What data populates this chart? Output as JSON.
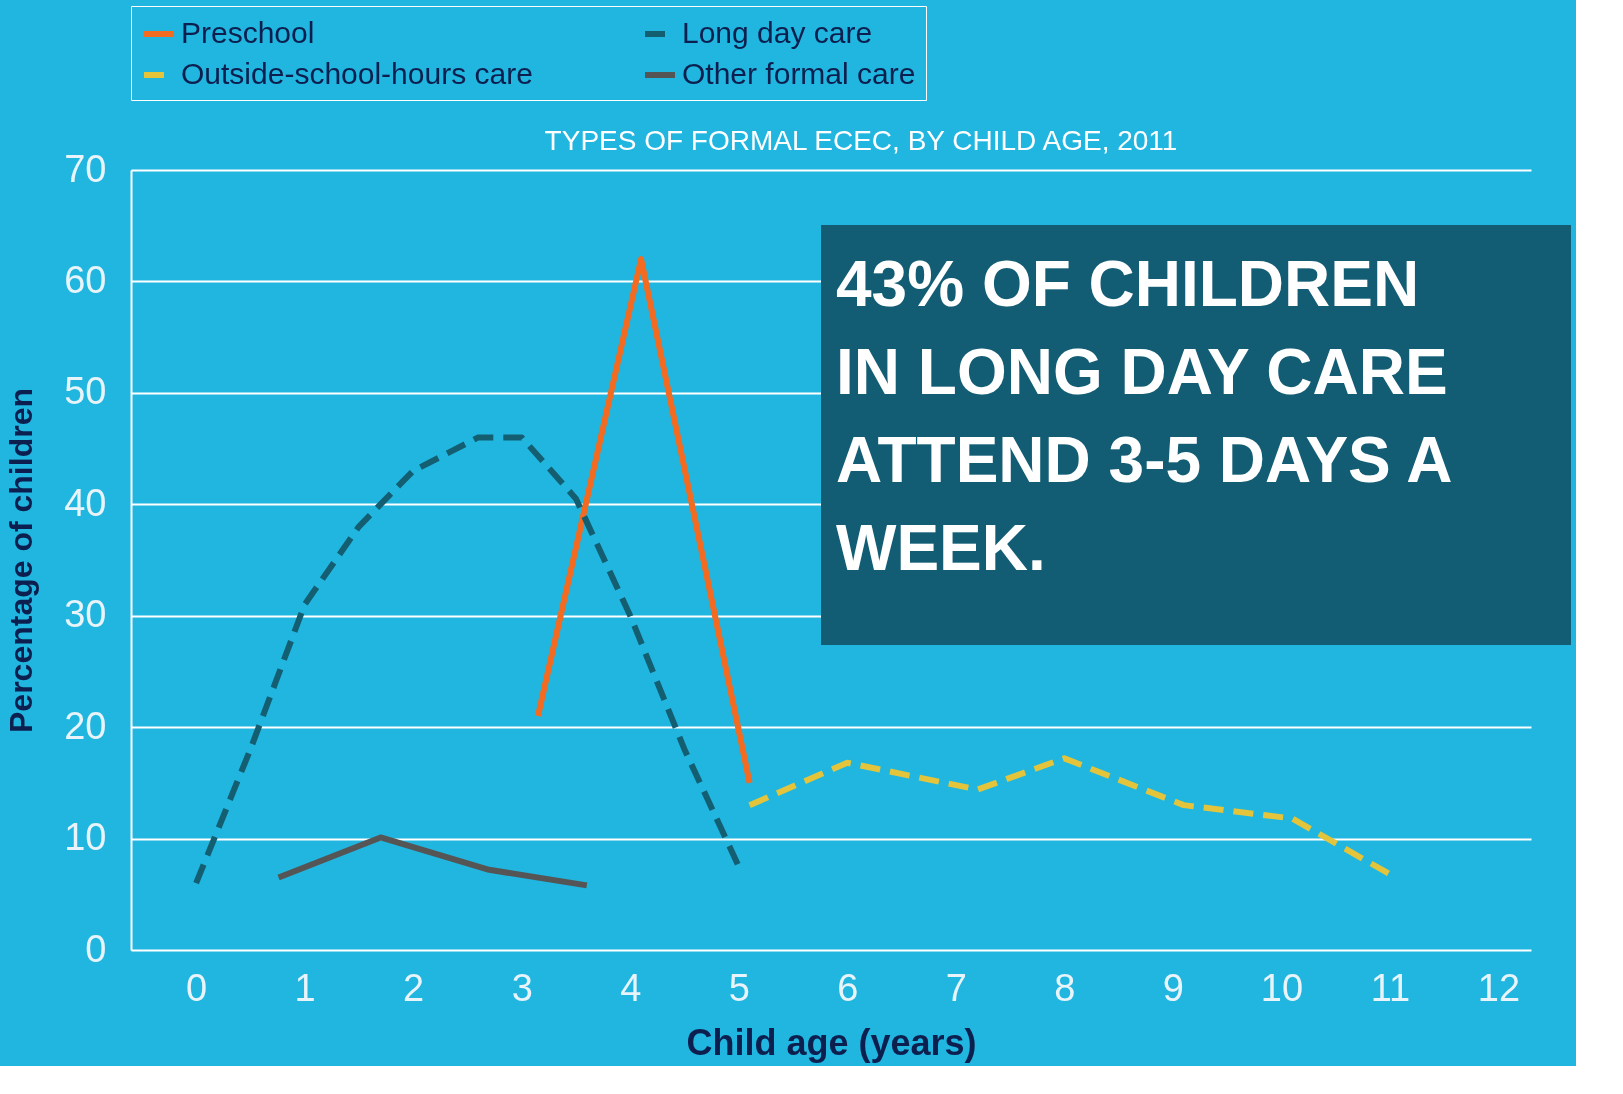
{
  "chart_data": {
    "type": "line",
    "title": "TYPES OF FORMAL ECEC, BY CHILD AGE, 2011",
    "xlabel": "Child age (years)",
    "ylabel": "Percentage of children",
    "xlim": [
      -0.6,
      12.3
    ],
    "xticks": [
      0,
      1,
      2,
      3,
      4,
      5,
      6,
      7,
      8,
      9,
      10,
      11,
      12
    ],
    "ylim": [
      0,
      70
    ],
    "yticks": [
      0,
      10,
      20,
      30,
      40,
      50,
      60,
      70
    ],
    "grid": "y",
    "legend": "top",
    "marker": "none",
    "series": [
      {
        "name": "Preschool",
        "color": "#f26b21",
        "line_style": "solid",
        "x": [
          3.15,
          4.1,
          5.1
        ],
        "values": [
          21,
          62,
          15
        ]
      },
      {
        "name": "Long day care",
        "color": "#145e72",
        "line_style": "dashed",
        "x": [
          0,
          0.5,
          1,
          1.5,
          2,
          2.6,
          3,
          3.5,
          4,
          4.5,
          5
        ],
        "values": [
          6,
          18,
          31,
          38,
          43,
          46,
          46,
          40.5,
          30,
          18,
          7.5
        ]
      },
      {
        "name": "Outside-school-hours care",
        "color": "#e3c43a",
        "line_style": "dashed",
        "x": [
          5.1,
          6,
          7.2,
          8,
          9.1,
          10.1,
          11
        ],
        "values": [
          13,
          16.8,
          14.4,
          17.2,
          13,
          11.8,
          6.8
        ]
      },
      {
        "name": "Other formal care",
        "color": "#555555",
        "line_style": "solid",
        "x": [
          0.76,
          1.7,
          2.7,
          3.6
        ],
        "values": [
          6.5,
          10.1,
          7.2,
          5.8
        ]
      }
    ],
    "annotations": [
      "43% OF CHILDREN IN LONG DAY CARE ATTEND 3-5 DAYS A WEEK."
    ]
  }
}
